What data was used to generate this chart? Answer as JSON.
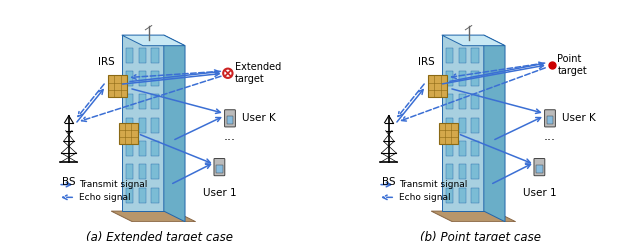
{
  "title_left": "(a) Extended target case",
  "title_right": "(b) Point target case",
  "legend_transmit": "Transmit signal",
  "legend_echo": "Echo signal",
  "arrow_color": "#3B6FD4",
  "background": "#ffffff",
  "label_irs": "IRS",
  "label_bs": "BS",
  "label_user_k": "User K",
  "label_user1": "User 1",
  "label_target_left": "Extended\ntarget",
  "label_target_right": "Point\ntarget",
  "fig_width": 6.4,
  "fig_height": 2.41,
  "dpi": 100,
  "building_front": "#A8D0E0",
  "building_side": "#6AAEC8",
  "building_top": "#C8E8F4",
  "building_base": "#B8966A",
  "window_color": "#7BBCD5",
  "irs_color": "#D4A84B",
  "irs_edge": "#8B6914"
}
